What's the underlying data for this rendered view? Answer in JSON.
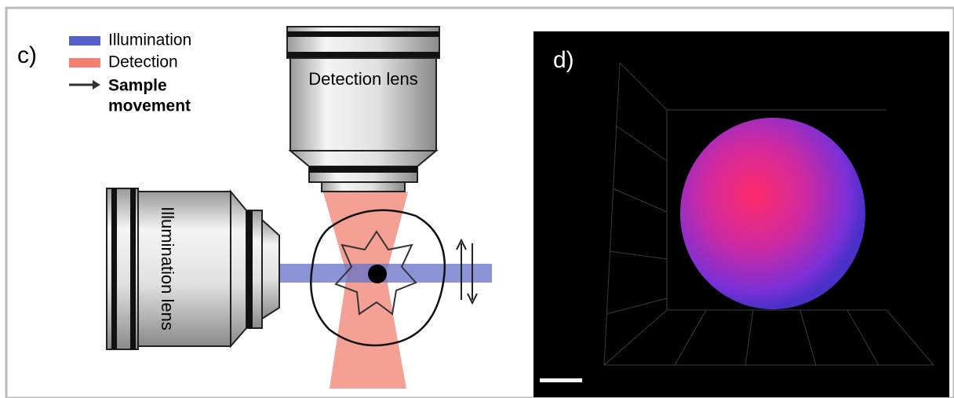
{
  "panel_c": {
    "label": "c)",
    "legend": [
      "Illumination",
      "Detection"
    ],
    "movement_legend": [
      "Sample",
      "movement"
    ],
    "detection_lens": "Detection lens",
    "illumination_lens": "Illumination lens"
  },
  "panel_d": {
    "label": "d)"
  }
}
